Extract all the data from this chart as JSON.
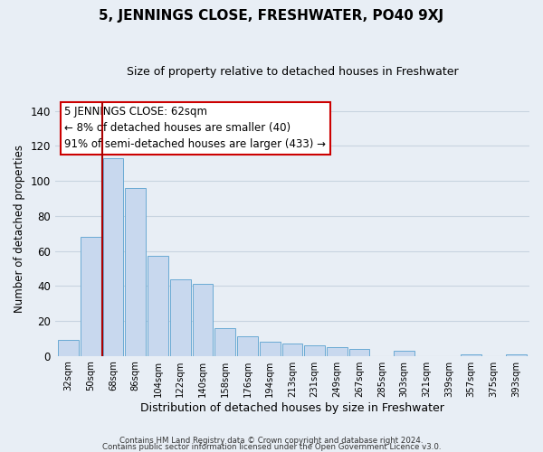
{
  "title": "5, JENNINGS CLOSE, FRESHWATER, PO40 9XJ",
  "subtitle": "Size of property relative to detached houses in Freshwater",
  "xlabel": "Distribution of detached houses by size in Freshwater",
  "ylabel": "Number of detached properties",
  "bar_labels": [
    "32sqm",
    "50sqm",
    "68sqm",
    "86sqm",
    "104sqm",
    "122sqm",
    "140sqm",
    "158sqm",
    "176sqm",
    "194sqm",
    "213sqm",
    "231sqm",
    "249sqm",
    "267sqm",
    "285sqm",
    "303sqm",
    "321sqm",
    "339sqm",
    "357sqm",
    "375sqm",
    "393sqm"
  ],
  "bar_values": [
    9,
    68,
    113,
    96,
    57,
    44,
    41,
    16,
    11,
    8,
    7,
    6,
    5,
    4,
    0,
    3,
    0,
    0,
    1,
    0,
    1
  ],
  "bar_color": "#c8d8ee",
  "bar_edge_color": "#6aaad4",
  "vline_x": 1.5,
  "vline_color": "#aa0000",
  "ylim": [
    0,
    145
  ],
  "yticks": [
    0,
    20,
    40,
    60,
    80,
    100,
    120,
    140
  ],
  "annotation_title": "5 JENNINGS CLOSE: 62sqm",
  "annotation_line1": "← 8% of detached houses are smaller (40)",
  "annotation_line2": "91% of semi-detached houses are larger (433) →",
  "annotation_box_color": "#ffffff",
  "annotation_box_edge": "#cc0000",
  "footnote1": "Contains HM Land Registry data © Crown copyright and database right 2024.",
  "footnote2": "Contains public sector information licensed under the Open Government Licence v3.0.",
  "background_color": "#e8eef5",
  "grid_color": "#c8d4e0",
  "title_fontsize": 11,
  "subtitle_fontsize": 9
}
